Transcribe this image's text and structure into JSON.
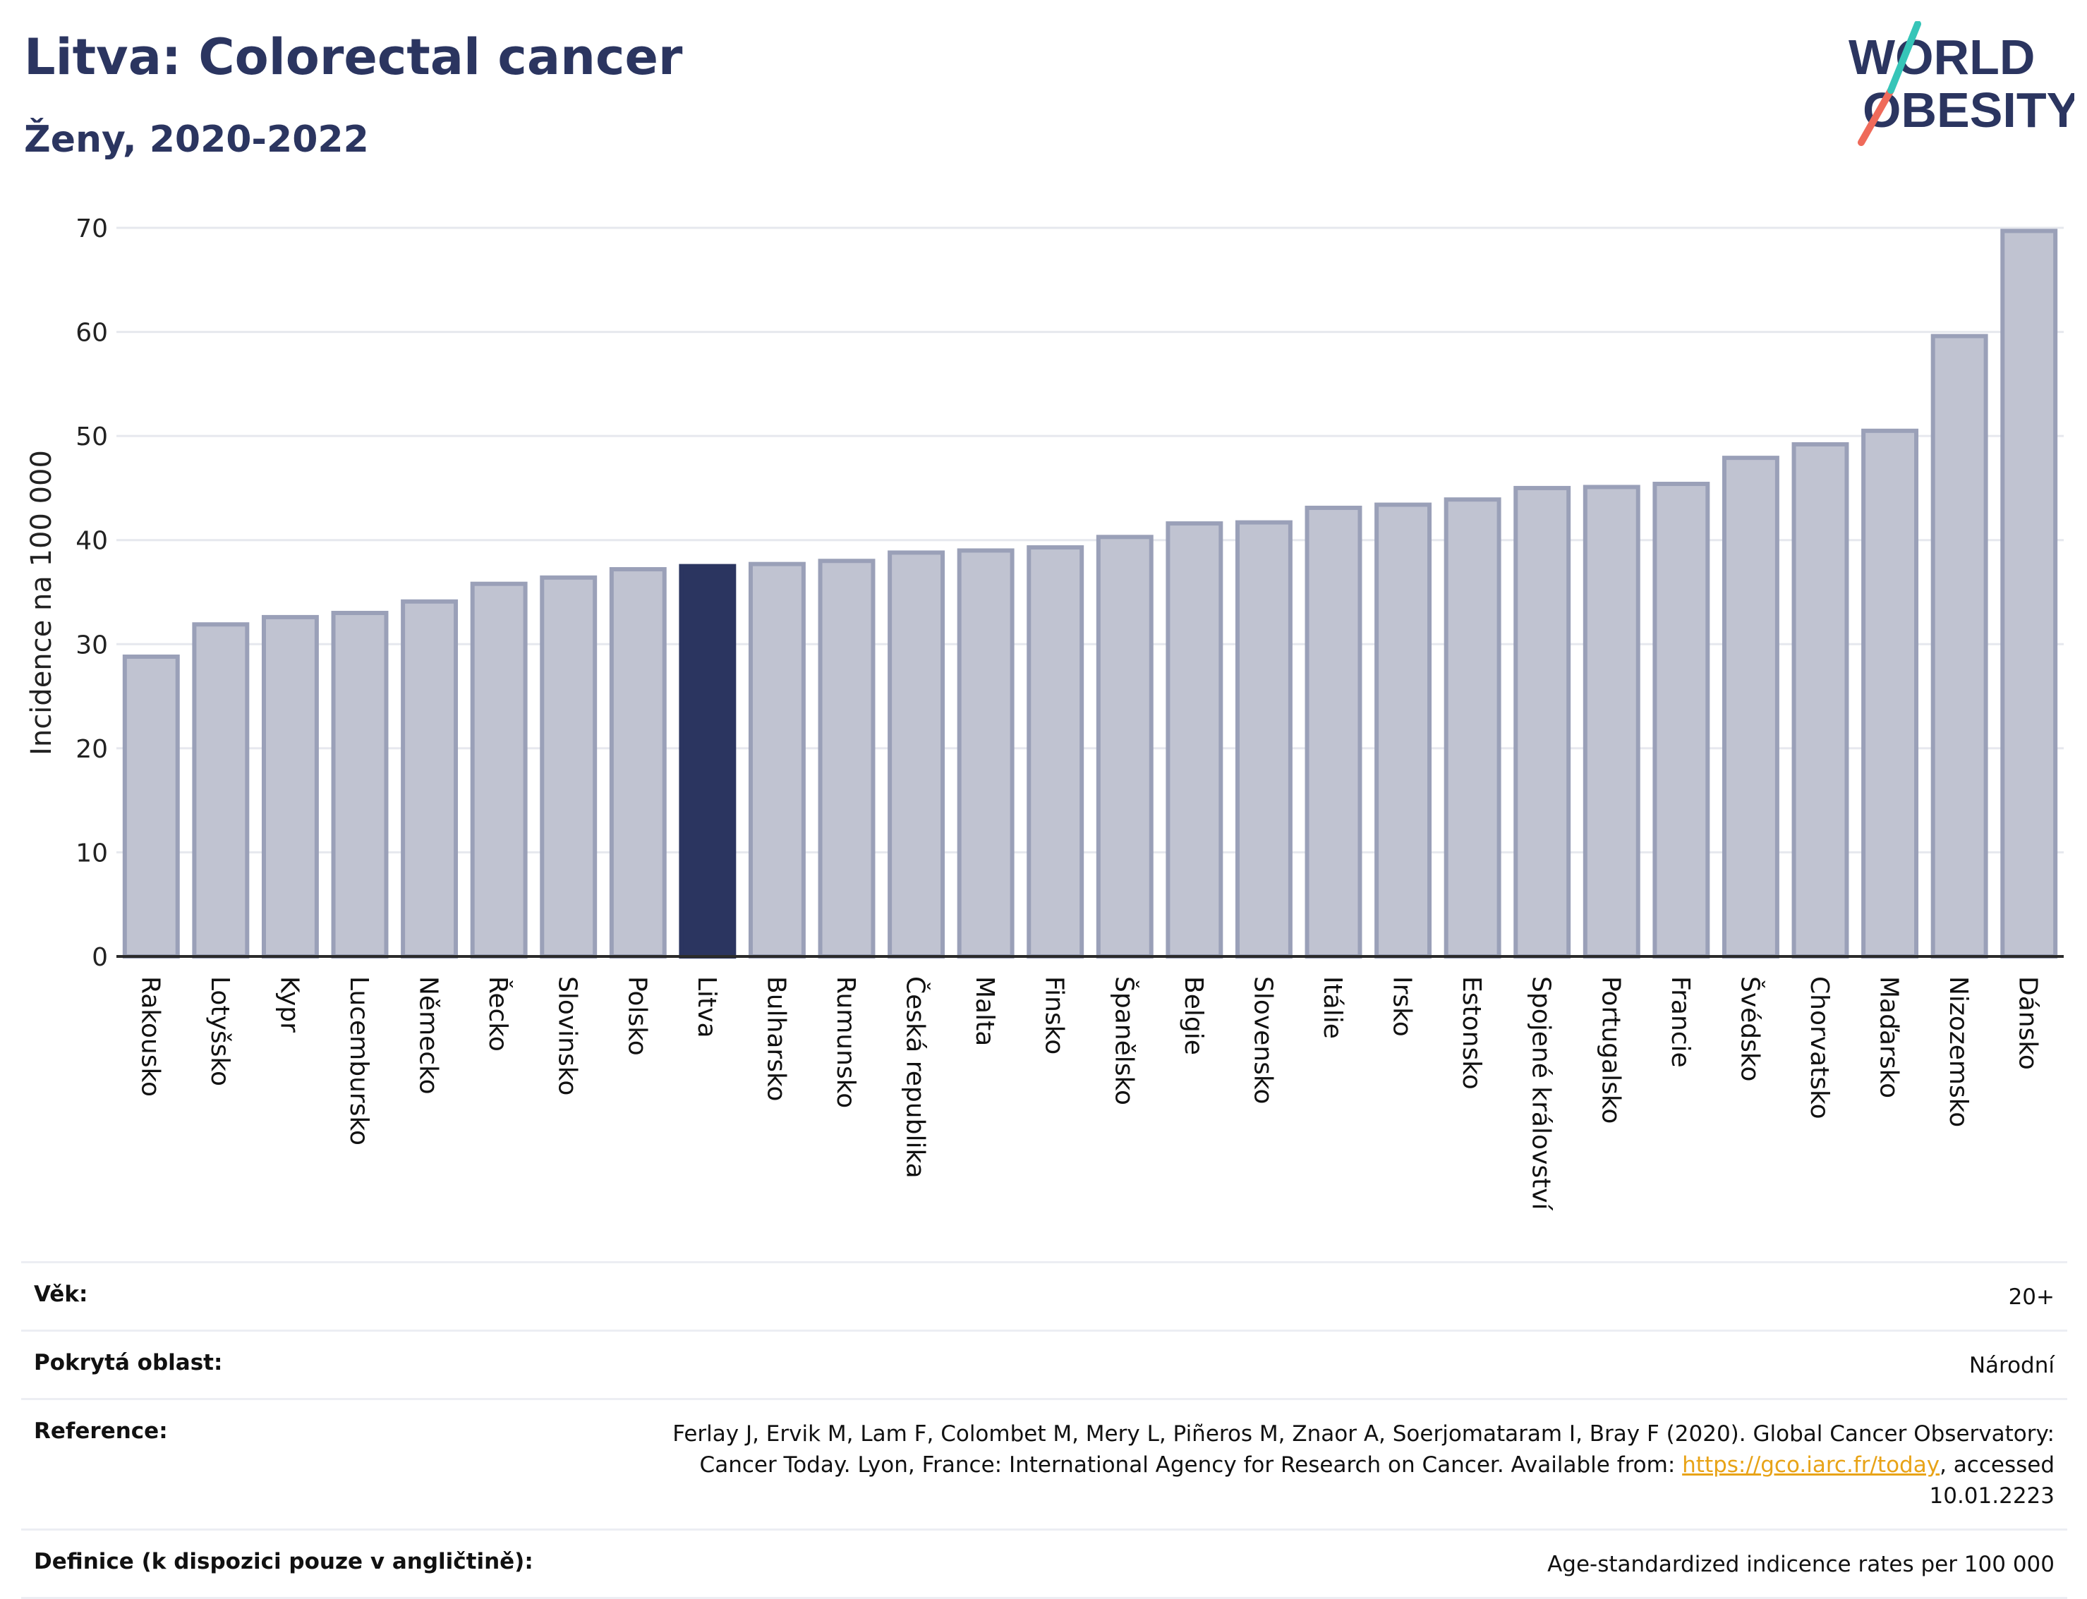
{
  "header": {
    "title": "Litva: Colorectal cancer",
    "subtitle": "Ženy, 2020-2022"
  },
  "logo": {
    "line1": "WORLD",
    "line2": "OBESITY",
    "slash_colors": [
      "#36c5b8",
      "#ef6a5a"
    ],
    "text_color": "#2b3560"
  },
  "colors": {
    "bar": "#c0c3d1",
    "bar_stroke": "#9aa0b8",
    "highlight": "#2b3560",
    "grid": "#e6e8ee",
    "axis": "#2b2b2b"
  },
  "chart_data": {
    "type": "bar",
    "title": "",
    "xlabel": "",
    "ylabel": "Incidence na 100 000",
    "ylim": [
      0,
      70
    ],
    "yticks": [
      0,
      10,
      20,
      30,
      40,
      50,
      60,
      70
    ],
    "grid": true,
    "highlight_category": "Litva",
    "categories": [
      "Rakousko",
      "Lotyšsko",
      "Kypr",
      "Lucembursko",
      "Německo",
      "Řecko",
      "Slovinsko",
      "Polsko",
      "Litva",
      "Bulharsko",
      "Rumunsko",
      "Česká republika",
      "Malta",
      "Finsko",
      "Španělsko",
      "Belgie",
      "Slovensko",
      "Itálie",
      "Irsko",
      "Estonsko",
      "Spojené království",
      "Portugalsko",
      "Francie",
      "Švédsko",
      "Chorvatsko",
      "Maďarsko",
      "Nizozemsko",
      "Dánsko"
    ],
    "values": [
      28.8,
      31.9,
      32.6,
      33.0,
      34.1,
      35.8,
      36.4,
      37.2,
      37.5,
      37.7,
      38.0,
      38.8,
      39.0,
      39.3,
      40.3,
      41.6,
      41.7,
      43.1,
      43.4,
      43.9,
      45.0,
      45.1,
      45.4,
      47.9,
      49.2,
      50.5,
      59.6,
      69.7
    ]
  },
  "info": {
    "rows": [
      {
        "key": "Věk:",
        "value": "20+"
      },
      {
        "key": "Pokrytá oblast:",
        "value": "Národní"
      },
      {
        "key": "Reference:",
        "value": "Ferlay J, Ervik M, Lam F, Colombet M, Mery L, Piñeros M, Znaor A, Soerjomataram I, Bray F (2020). Global Cancer Observatory: Cancer Today. Lyon, France: International Agency for Research on Cancer. Available from: ",
        "link": "https://gco.iarc.fr/today",
        "suffix": ", accessed 10.01.2223"
      },
      {
        "key": "Definice (k dispozici pouze v angličtině):",
        "value": "Age-standardized indicence rates per 100 000"
      }
    ]
  }
}
